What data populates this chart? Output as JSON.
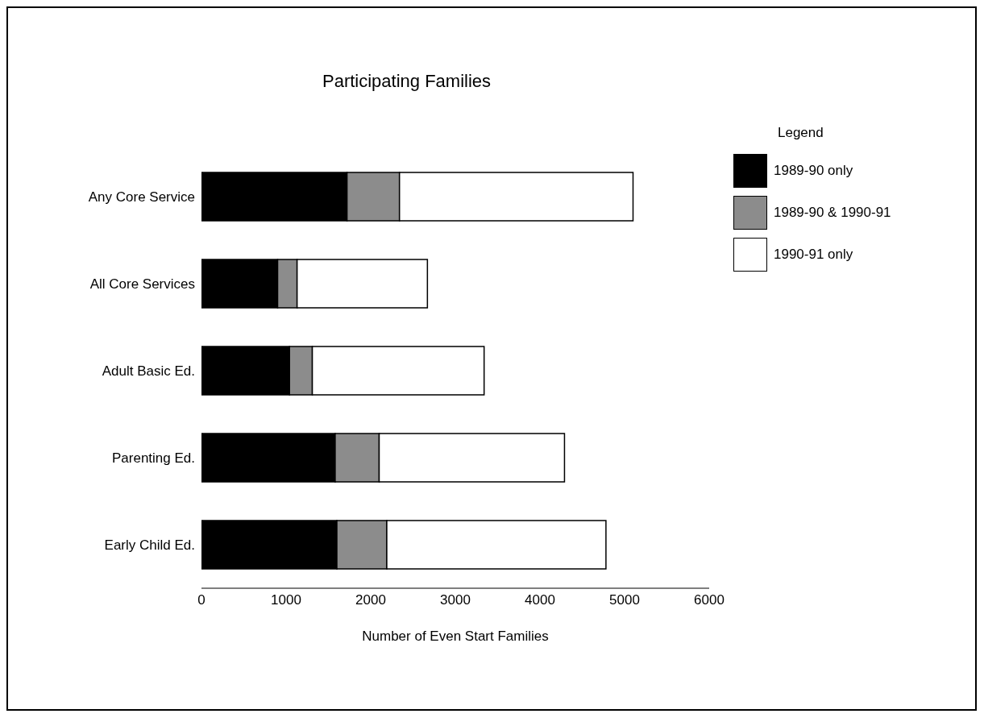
{
  "chart_data": {
    "type": "bar",
    "orientation": "horizontal",
    "stacked": true,
    "title": "Participating Families",
    "xlabel": "Number of Even Start Families",
    "legend_title": "Legend",
    "legend": "right",
    "grid": false,
    "categories": [
      "Any Core Service",
      "All Core Services",
      "Adult Basic Ed.",
      "Parenting Ed.",
      "Early Child Ed."
    ],
    "series": [
      {
        "name": "1989-90 only",
        "color": "#000000",
        "values": [
          1720,
          900,
          1040,
          1580,
          1600
        ]
      },
      {
        "name": "1989-90 & 1990-91",
        "color": "#8c8c8c",
        "values": [
          620,
          230,
          270,
          520,
          590
        ]
      },
      {
        "name": "1990-91 only",
        "color": "#ffffff",
        "values": [
          2760,
          1540,
          2030,
          2190,
          2590
        ]
      }
    ],
    "xlim": [
      0,
      6000
    ],
    "xticks": [
      0,
      1000,
      2000,
      3000,
      4000,
      5000,
      6000
    ]
  }
}
